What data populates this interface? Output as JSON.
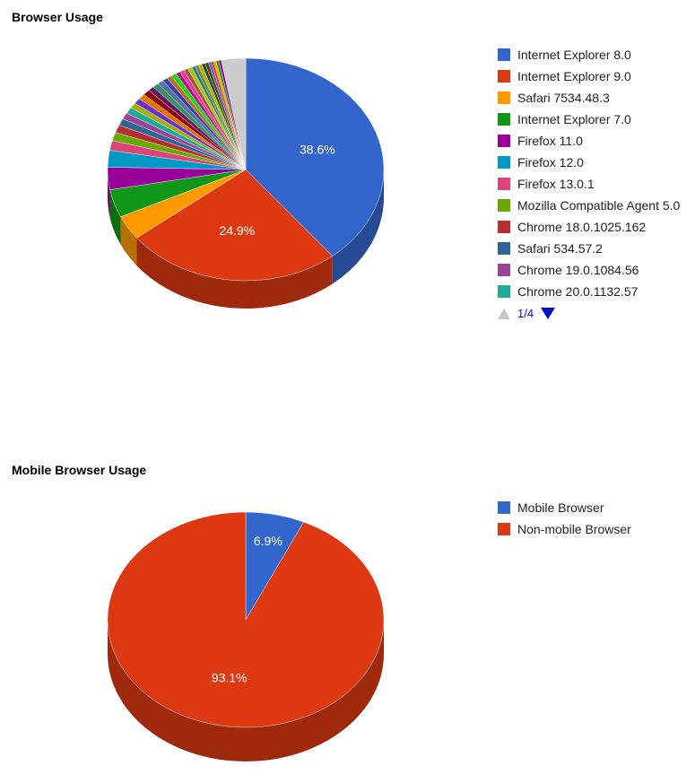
{
  "chart_data": [
    {
      "type": "pie",
      "title": "Browser Usage",
      "legend_position": "right",
      "three_d": true,
      "slices": [
        {
          "name": "Internet Explorer 8.0",
          "value": 38.6,
          "color": "#3366cc",
          "label": "38.6%"
        },
        {
          "name": "Internet Explorer 9.0",
          "value": 24.9,
          "color": "#dc3912",
          "label": "24.9%"
        },
        {
          "name": "Safari 7534.48.3",
          "value": 3.5,
          "color": "#ff9900",
          "label": ""
        },
        {
          "name": "Internet Explorer 7.0",
          "value": 4.0,
          "color": "#109618",
          "label": ""
        },
        {
          "name": "Firefox 11.0",
          "value": 3.2,
          "color": "#990099",
          "label": ""
        },
        {
          "name": "Firefox 12.0",
          "value": 2.4,
          "color": "#0099c6",
          "label": ""
        },
        {
          "name": "Firefox 13.0.1",
          "value": 1.4,
          "color": "#dd4477",
          "label": ""
        },
        {
          "name": "Mozilla Compatible Agent 5.0",
          "value": 1.2,
          "color": "#66aa00",
          "label": ""
        },
        {
          "name": "Chrome 18.0.1025.162",
          "value": 1.1,
          "color": "#b82e2e",
          "label": ""
        },
        {
          "name": "Safari 534.57.2",
          "value": 1.0,
          "color": "#316395",
          "label": ""
        },
        {
          "name": "Chrome 19.0.1084.56",
          "value": 0.9,
          "color": "#994499",
          "label": ""
        },
        {
          "name": "Chrome 20.0.1132.57",
          "value": 0.9,
          "color": "#22aa99",
          "label": ""
        },
        {
          "name": "",
          "value": 0.8,
          "color": "#aaaa11",
          "label": ""
        },
        {
          "name": "",
          "value": 0.8,
          "color": "#6633cc",
          "label": ""
        },
        {
          "name": "",
          "value": 0.8,
          "color": "#e67300",
          "label": ""
        },
        {
          "name": "",
          "value": 0.8,
          "color": "#8b0707",
          "label": ""
        },
        {
          "name": "",
          "value": 0.7,
          "color": "#651067",
          "label": ""
        },
        {
          "name": "",
          "value": 0.7,
          "color": "#329262",
          "label": ""
        },
        {
          "name": "",
          "value": 0.7,
          "color": "#5574a6",
          "label": ""
        },
        {
          "name": "",
          "value": 0.6,
          "color": "#3b3eac",
          "label": ""
        },
        {
          "name": "",
          "value": 0.6,
          "color": "#b77322",
          "label": ""
        },
        {
          "name": "",
          "value": 0.6,
          "color": "#16d620",
          "label": ""
        },
        {
          "name": "",
          "value": 0.5,
          "color": "#b91383",
          "label": ""
        },
        {
          "name": "",
          "value": 0.5,
          "color": "#f4359e",
          "label": ""
        },
        {
          "name": "",
          "value": 0.5,
          "color": "#9c5935",
          "label": ""
        },
        {
          "name": "",
          "value": 0.5,
          "color": "#a9c413",
          "label": ""
        },
        {
          "name": "",
          "value": 0.4,
          "color": "#2a778d",
          "label": ""
        },
        {
          "name": "",
          "value": 0.4,
          "color": "#668d1c",
          "label": ""
        },
        {
          "name": "",
          "value": 0.4,
          "color": "#bea413",
          "label": ""
        },
        {
          "name": "",
          "value": 0.4,
          "color": "#0c5922",
          "label": ""
        },
        {
          "name": "",
          "value": 0.4,
          "color": "#743411",
          "label": ""
        },
        {
          "name": "",
          "value": 0.3,
          "color": "#3366cc",
          "label": ""
        },
        {
          "name": "",
          "value": 0.3,
          "color": "#dc3912",
          "label": ""
        },
        {
          "name": "",
          "value": 0.3,
          "color": "#ff9900",
          "label": ""
        },
        {
          "name": "",
          "value": 0.3,
          "color": "#109618",
          "label": ""
        },
        {
          "name": "",
          "value": 0.3,
          "color": "#990099",
          "label": ""
        },
        {
          "name": "",
          "value": 2.8,
          "color": "#cccccc",
          "label": ""
        }
      ],
      "legend_pager": {
        "text": "1/4",
        "current_page": 1,
        "total_pages": 4
      }
    },
    {
      "type": "pie",
      "title": "Mobile Browser Usage",
      "legend_position": "right",
      "three_d": true,
      "slices": [
        {
          "name": "Mobile Browser",
          "value": 6.9,
          "color": "#3366cc",
          "label": "6.9%"
        },
        {
          "name": "Non-mobile Browser",
          "value": 93.1,
          "color": "#dc3912",
          "label": "93.1%"
        }
      ]
    }
  ]
}
